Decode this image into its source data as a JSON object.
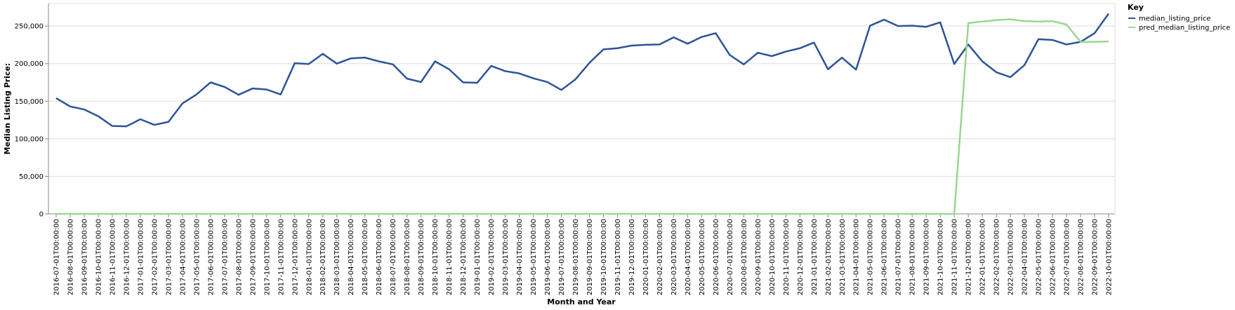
{
  "chart_data": {
    "type": "line",
    "title": "",
    "xlabel": "Month and Year",
    "ylabel": "Median Listing Price:",
    "ylim": [
      0,
      280000
    ],
    "yticks": [
      0,
      50000,
      100000,
      150000,
      200000,
      250000
    ],
    "grid": true,
    "legend_title": "Key",
    "legend_position": "top-right",
    "categories": [
      "2016-07-01T00:00:00",
      "2016-08-01T00:00:00",
      "2016-09-01T00:00:00",
      "2016-10-01T00:00:00",
      "2016-11-01T00:00:00",
      "2016-12-01T00:00:00",
      "2017-01-01T00:00:00",
      "2017-02-01T00:00:00",
      "2017-03-01T00:00:00",
      "2017-04-01T00:00:00",
      "2017-05-01T00:00:00",
      "2017-06-01T00:00:00",
      "2017-07-01T00:00:00",
      "2017-08-01T00:00:00",
      "2017-09-01T00:00:00",
      "2017-10-01T00:00:00",
      "2017-11-01T00:00:00",
      "2017-12-01T00:00:00",
      "2018-01-01T00:00:00",
      "2018-02-01T00:00:00",
      "2018-03-01T00:00:00",
      "2018-04-01T00:00:00",
      "2018-05-01T00:00:00",
      "2018-06-01T00:00:00",
      "2018-07-01T00:00:00",
      "2018-08-01T00:00:00",
      "2018-09-01T00:00:00",
      "2018-10-01T00:00:00",
      "2018-11-01T00:00:00",
      "2018-12-01T00:00:00",
      "2019-01-01T00:00:00",
      "2019-02-01T00:00:00",
      "2019-03-01T00:00:00",
      "2019-04-01T00:00:00",
      "2019-05-01T00:00:00",
      "2019-06-01T00:00:00",
      "2019-07-01T00:00:00",
      "2019-08-01T00:00:00",
      "2019-09-01T00:00:00",
      "2019-10-01T00:00:00",
      "2019-11-01T00:00:00",
      "2019-12-01T00:00:00",
      "2020-01-01T00:00:00",
      "2020-02-01T00:00:00",
      "2020-03-01T00:00:00",
      "2020-04-01T00:00:00",
      "2020-05-01T00:00:00",
      "2020-06-01T00:00:00",
      "2020-07-01T00:00:00",
      "2020-08-01T00:00:00",
      "2020-09-01T00:00:00",
      "2020-10-01T00:00:00",
      "2020-11-01T00:00:00",
      "2020-12-01T00:00:00",
      "2021-01-01T00:00:00",
      "2021-02-01T00:00:00",
      "2021-03-01T00:00:00",
      "2021-04-01T00:00:00",
      "2021-05-01T00:00:00",
      "2021-06-01T00:00:00",
      "2021-07-01T00:00:00",
      "2021-08-01T00:00:00",
      "2021-09-01T00:00:00",
      "2021-10-01T00:00:00",
      "2021-11-01T00:00:00",
      "2021-12-01T00:00:00",
      "2022-01-01T00:00:00",
      "2022-02-01T00:00:00",
      "2022-03-01T00:00:00",
      "2022-04-01T00:00:00",
      "2022-05-01T00:00:00",
      "2022-06-01T00:00:00",
      "2022-07-01T00:00:00",
      "2022-08-01T00:00:00",
      "2022-09-01T00:00:00",
      "2022-10-01T00:00:00"
    ],
    "series": [
      {
        "name": "median_listing_price",
        "color": "#2c5496",
        "values": [
          154000,
          143000,
          139000,
          130000,
          117000,
          116500,
          126000,
          118500,
          122500,
          147000,
          159000,
          175000,
          169000,
          158500,
          167000,
          165500,
          159000,
          200500,
          199500,
          213000,
          200000,
          207000,
          208000,
          203000,
          199000,
          180000,
          175500,
          203000,
          192500,
          175000,
          174500,
          197000,
          190000,
          187000,
          180500,
          175500,
          165000,
          179000,
          201000,
          219000,
          220500,
          224000,
          225000,
          225500,
          235000,
          226500,
          235500,
          240500,
          211500,
          199000,
          214500,
          210000,
          216000,
          220500,
          228000,
          192500,
          208000,
          192000,
          250500,
          258500,
          250000,
          250500,
          249000,
          255000,
          199500,
          225500,
          203000,
          188500,
          182000,
          198000,
          232500,
          231500,
          225500,
          229000,
          240500,
          266500
        ]
      },
      {
        "name": "pred_median_listing_price",
        "color": "#9ad693",
        "values": [
          0,
          0,
          0,
          0,
          0,
          0,
          0,
          0,
          0,
          0,
          0,
          0,
          0,
          0,
          0,
          0,
          0,
          0,
          0,
          0,
          0,
          0,
          0,
          0,
          0,
          0,
          0,
          0,
          0,
          0,
          0,
          0,
          0,
          0,
          0,
          0,
          0,
          0,
          0,
          0,
          0,
          0,
          0,
          0,
          0,
          0,
          0,
          0,
          0,
          0,
          0,
          0,
          0,
          0,
          0,
          0,
          0,
          0,
          0,
          0,
          0,
          0,
          0,
          0,
          0,
          254000,
          256000,
          258000,
          259000,
          256500,
          256000,
          256500,
          252000,
          229000,
          229000,
          229500
        ]
      }
    ]
  }
}
